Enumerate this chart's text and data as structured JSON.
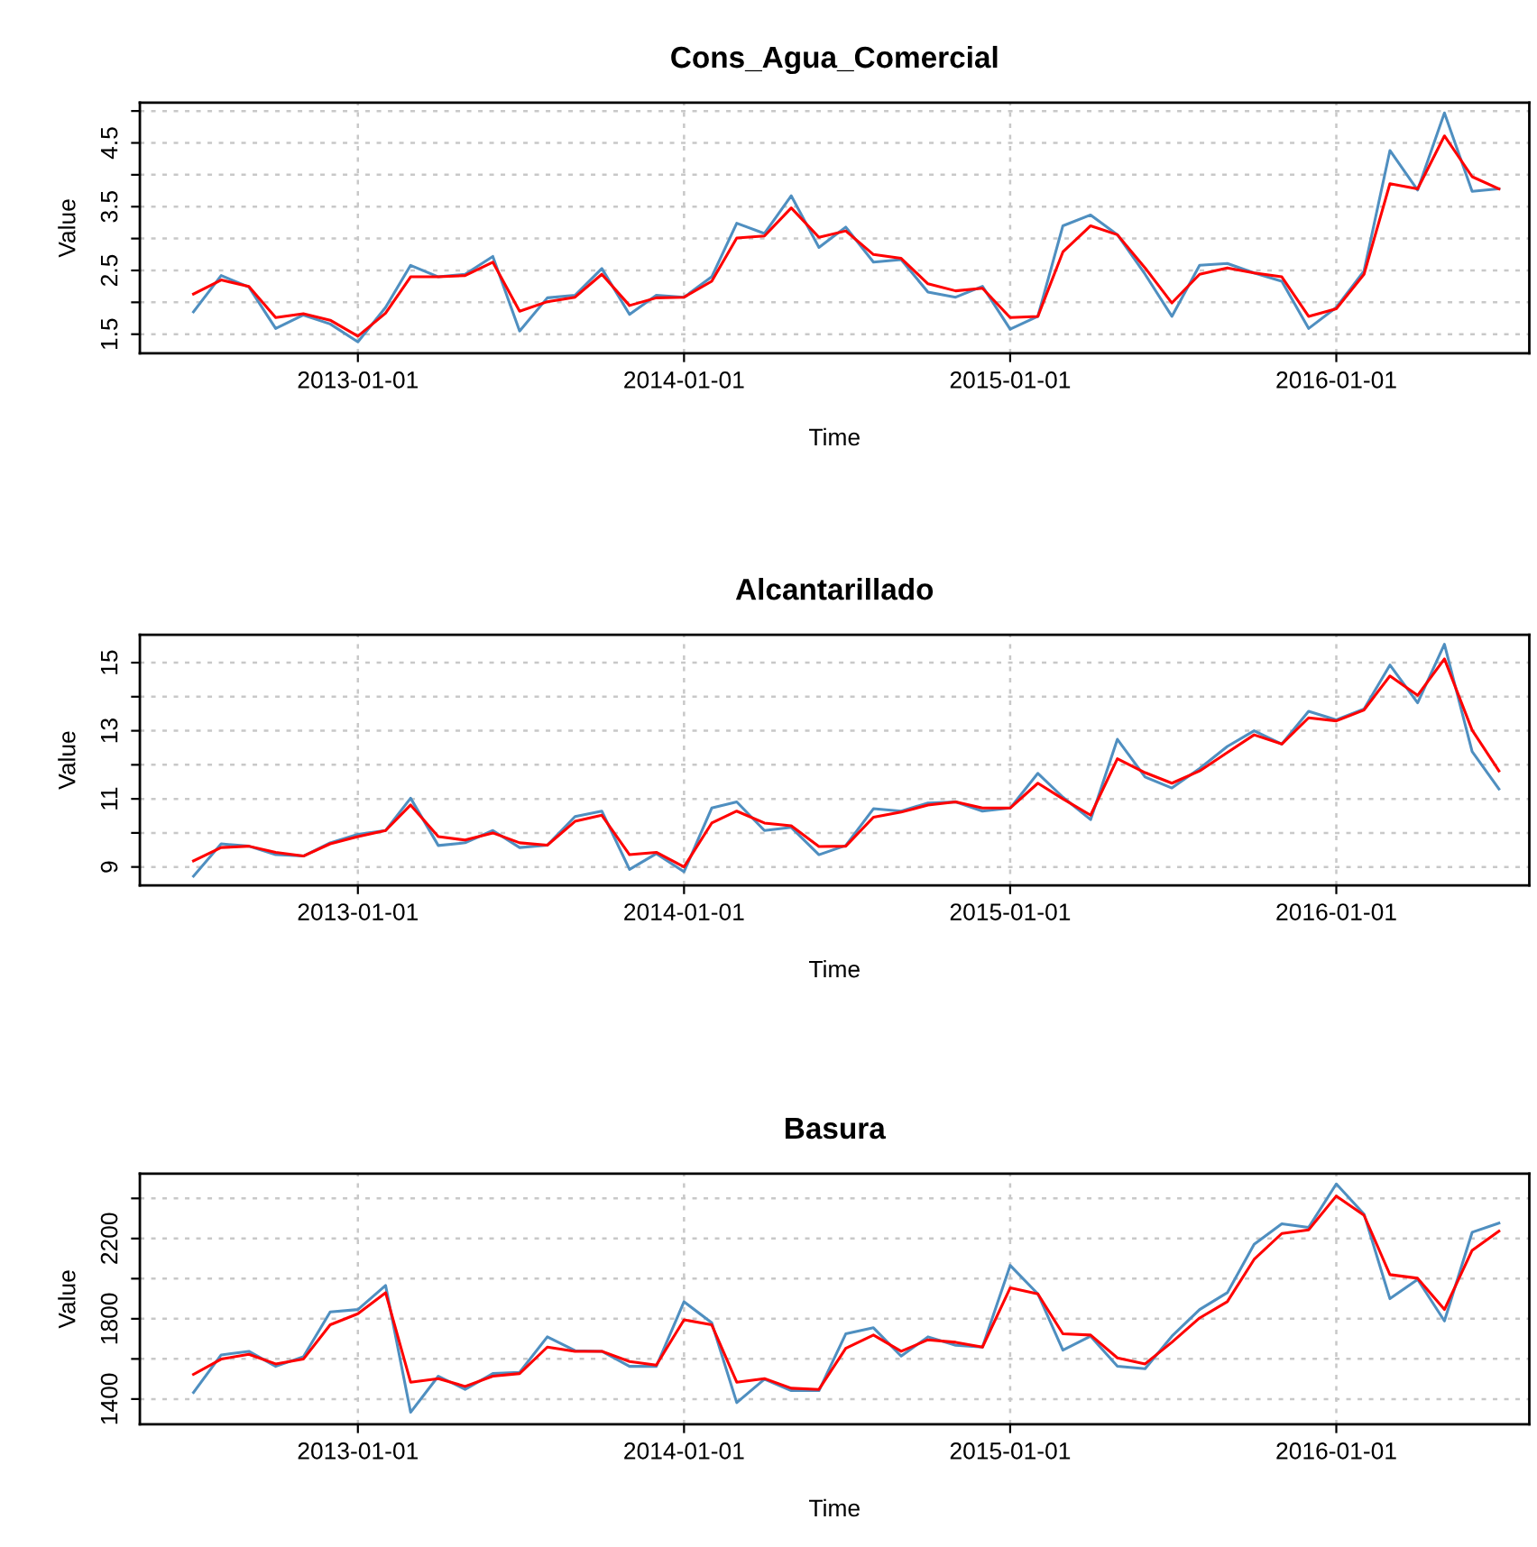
{
  "chart_data": [
    {
      "type": "line",
      "title": "Cons_Agua_Comercial",
      "xlabel": "Time",
      "ylabel": "Value",
      "grid": true,
      "xlim": [
        "2012-05-02",
        "2016-08-04"
      ],
      "xticks": [
        {
          "value": "2013-01-01",
          "label": "2013-01-01"
        },
        {
          "value": "2014-01-01",
          "label": "2014-01-01"
        },
        {
          "value": "2015-01-01",
          "label": "2015-01-01"
        },
        {
          "value": "2016-01-01",
          "label": "2016-01-01"
        }
      ],
      "ylim": [
        1.2,
        5.13
      ],
      "yticks": [
        1.5,
        {
          "value": 2,
          "label": null
        },
        2.5,
        {
          "value": 3,
          "label": null
        },
        3.5,
        {
          "value": 4,
          "label": null
        },
        4.5,
        {
          "value": 5,
          "label": null
        }
      ],
      "x": [
        "2012-07",
        "2012-08",
        "2012-09",
        "2012-10",
        "2012-11",
        "2012-12",
        "2013-01",
        "2013-02",
        "2013-03",
        "2013-04",
        "2013-05",
        "2013-06",
        "2013-07",
        "2013-08",
        "2013-09",
        "2013-10",
        "2013-11",
        "2013-12",
        "2014-01",
        "2014-02",
        "2014-03",
        "2014-04",
        "2014-05",
        "2014-06",
        "2014-07",
        "2014-08",
        "2014-09",
        "2014-10",
        "2014-11",
        "2014-12",
        "2015-01",
        "2015-02",
        "2015-03",
        "2015-04",
        "2015-05",
        "2015-06",
        "2015-07",
        "2015-08",
        "2015-09",
        "2015-10",
        "2015-11",
        "2015-12",
        "2016-01",
        "2016-02",
        "2016-03",
        "2016-04",
        "2016-05",
        "2016-06",
        "2016-07"
      ],
      "series": [
        {
          "color": "#4f8fc0",
          "values": [
            1.85,
            2.42,
            2.24,
            1.59,
            1.8,
            1.66,
            1.38,
            1.92,
            2.58,
            2.4,
            2.44,
            2.72,
            1.55,
            2.07,
            2.11,
            2.53,
            1.81,
            2.11,
            2.08,
            2.4,
            3.24,
            3.08,
            3.67,
            2.86,
            3.18,
            2.63,
            2.67,
            2.16,
            2.08,
            2.25,
            1.58,
            1.78,
            3.2,
            3.37,
            3.06,
            2.44,
            1.78,
            2.58,
            2.61,
            2.46,
            2.33,
            1.59,
            1.92,
            2.49,
            4.38,
            3.76,
            4.97,
            3.74,
            3.78
          ]
        },
        {
          "color": "#ff0000",
          "values": [
            2.13,
            2.35,
            2.25,
            1.76,
            1.82,
            1.72,
            1.47,
            1.83,
            2.4,
            2.4,
            2.42,
            2.63,
            1.86,
            2.01,
            2.08,
            2.44,
            1.95,
            2.07,
            2.08,
            2.33,
            3.01,
            3.04,
            3.48,
            3.02,
            3.12,
            2.75,
            2.69,
            2.29,
            2.18,
            2.22,
            1.76,
            1.78,
            2.79,
            3.2,
            3.06,
            2.54,
            1.99,
            2.44,
            2.54,
            2.46,
            2.4,
            1.78,
            1.9,
            2.44,
            3.86,
            3.78,
            4.61,
            3.97,
            3.78
          ]
        }
      ]
    },
    {
      "type": "line",
      "title": "Alcantarillado",
      "xlabel": "Time",
      "ylabel": "Value",
      "grid": true,
      "xlim": [
        "2012-05-02",
        "2016-08-04"
      ],
      "xticks": [
        {
          "value": "2013-01-01",
          "label": "2013-01-01"
        },
        {
          "value": "2014-01-01",
          "label": "2014-01-01"
        },
        {
          "value": "2015-01-01",
          "label": "2015-01-01"
        },
        {
          "value": "2016-01-01",
          "label": "2016-01-01"
        }
      ],
      "ylim": [
        8.46,
        15.82
      ],
      "yticks": [
        9,
        {
          "value": 10,
          "label": null
        },
        11,
        {
          "value": 12,
          "label": null
        },
        13,
        {
          "value": 14,
          "label": null
        },
        15
      ],
      "x": [
        "2012-07",
        "2012-08",
        "2012-09",
        "2012-10",
        "2012-11",
        "2012-12",
        "2013-01",
        "2013-02",
        "2013-03",
        "2013-04",
        "2013-05",
        "2013-06",
        "2013-07",
        "2013-08",
        "2013-09",
        "2013-10",
        "2013-11",
        "2013-12",
        "2014-01",
        "2014-02",
        "2014-03",
        "2014-04",
        "2014-05",
        "2014-06",
        "2014-07",
        "2014-08",
        "2014-09",
        "2014-10",
        "2014-11",
        "2014-12",
        "2015-01",
        "2015-02",
        "2015-03",
        "2015-04",
        "2015-05",
        "2015-06",
        "2015-07",
        "2015-08",
        "2015-09",
        "2015-10",
        "2015-11",
        "2015-12",
        "2016-01",
        "2016-02",
        "2016-03",
        "2016-04",
        "2016-05",
        "2016-06",
        "2016-07"
      ],
      "series": [
        {
          "color": "#4f8fc0",
          "values": [
            8.73,
            9.68,
            9.61,
            9.36,
            9.32,
            9.71,
            9.96,
            10.07,
            11.02,
            9.63,
            9.71,
            10.07,
            9.57,
            9.64,
            10.48,
            10.64,
            8.93,
            9.39,
            8.86,
            10.73,
            10.91,
            10.07,
            10.16,
            9.36,
            9.63,
            10.71,
            10.64,
            10.88,
            10.91,
            10.64,
            10.73,
            11.75,
            11.05,
            10.39,
            12.75,
            11.64,
            11.32,
            11.89,
            12.54,
            13.0,
            12.61,
            13.57,
            13.32,
            13.64,
            14.93,
            13.82,
            15.54,
            12.39,
            11.29
          ]
        },
        {
          "color": "#ff0000",
          "values": [
            9.18,
            9.57,
            9.61,
            9.43,
            9.32,
            9.68,
            9.89,
            10.07,
            10.82,
            9.89,
            9.79,
            10.0,
            9.71,
            9.64,
            10.34,
            10.52,
            9.36,
            9.43,
            9.0,
            10.29,
            10.64,
            10.29,
            10.21,
            9.6,
            9.61,
            10.46,
            10.61,
            10.82,
            10.91,
            10.73,
            10.73,
            11.46,
            11.0,
            10.52,
            12.18,
            11.77,
            11.46,
            11.82,
            12.36,
            12.88,
            12.61,
            13.38,
            13.29,
            13.61,
            14.61,
            14.04,
            15.11,
            13.02,
            11.82
          ]
        }
      ]
    },
    {
      "type": "line",
      "title": "Basura",
      "xlabel": "Time",
      "ylabel": "Value",
      "grid": true,
      "xlim": [
        "2012-05-02",
        "2016-08-04"
      ],
      "xticks": [
        {
          "value": "2013-01-01",
          "label": "2013-01-01"
        },
        {
          "value": "2014-01-01",
          "label": "2014-01-01"
        },
        {
          "value": "2015-01-01",
          "label": "2015-01-01"
        },
        {
          "value": "2016-01-01",
          "label": "2016-01-01"
        }
      ],
      "ylim": [
        1274,
        2523
      ],
      "yticks": [
        1400,
        {
          "value": 1600,
          "label": null
        },
        1800,
        {
          "value": 2000,
          "label": null
        },
        2200,
        {
          "value": 2400,
          "label": null
        }
      ],
      "x": [
        "2012-07",
        "2012-08",
        "2012-09",
        "2012-10",
        "2012-11",
        "2012-12",
        "2013-01",
        "2013-02",
        "2013-03",
        "2013-04",
        "2013-05",
        "2013-06",
        "2013-07",
        "2013-08",
        "2013-09",
        "2013-10",
        "2013-11",
        "2013-12",
        "2014-01",
        "2014-02",
        "2014-03",
        "2014-04",
        "2014-05",
        "2014-06",
        "2014-07",
        "2014-08",
        "2014-09",
        "2014-10",
        "2014-11",
        "2014-12",
        "2015-01",
        "2015-02",
        "2015-03",
        "2015-04",
        "2015-05",
        "2015-06",
        "2015-07",
        "2015-08",
        "2015-09",
        "2015-10",
        "2015-11",
        "2015-12",
        "2016-01",
        "2016-02",
        "2016-03",
        "2016-04",
        "2016-05",
        "2016-06",
        "2016-07"
      ],
      "series": [
        {
          "color": "#4f8fc0",
          "values": [
            1433,
            1620,
            1638,
            1563,
            1611,
            1834,
            1846,
            1966,
            1334,
            1514,
            1448,
            1527,
            1533,
            1710,
            1641,
            1638,
            1563,
            1563,
            1885,
            1780,
            1382,
            1499,
            1442,
            1442,
            1725,
            1755,
            1614,
            1710,
            1668,
            1659,
            2066,
            1924,
            1644,
            1713,
            1563,
            1551,
            1713,
            1846,
            1930,
            2171,
            2273,
            2255,
            2472,
            2322,
            1900,
            1996,
            1789,
            2231,
            2277
          ]
        },
        {
          "color": "#ff0000",
          "values": [
            1523,
            1599,
            1623,
            1575,
            1599,
            1770,
            1825,
            1930,
            1484,
            1502,
            1463,
            1514,
            1527,
            1659,
            1638,
            1638,
            1587,
            1569,
            1795,
            1770,
            1484,
            1502,
            1454,
            1448,
            1653,
            1719,
            1638,
            1695,
            1683,
            1659,
            1954,
            1924,
            1725,
            1719,
            1605,
            1575,
            1683,
            1804,
            1885,
            2096,
            2225,
            2243,
            2412,
            2316,
            2020,
            2002,
            1846,
            2141,
            2237
          ]
        }
      ]
    }
  ]
}
